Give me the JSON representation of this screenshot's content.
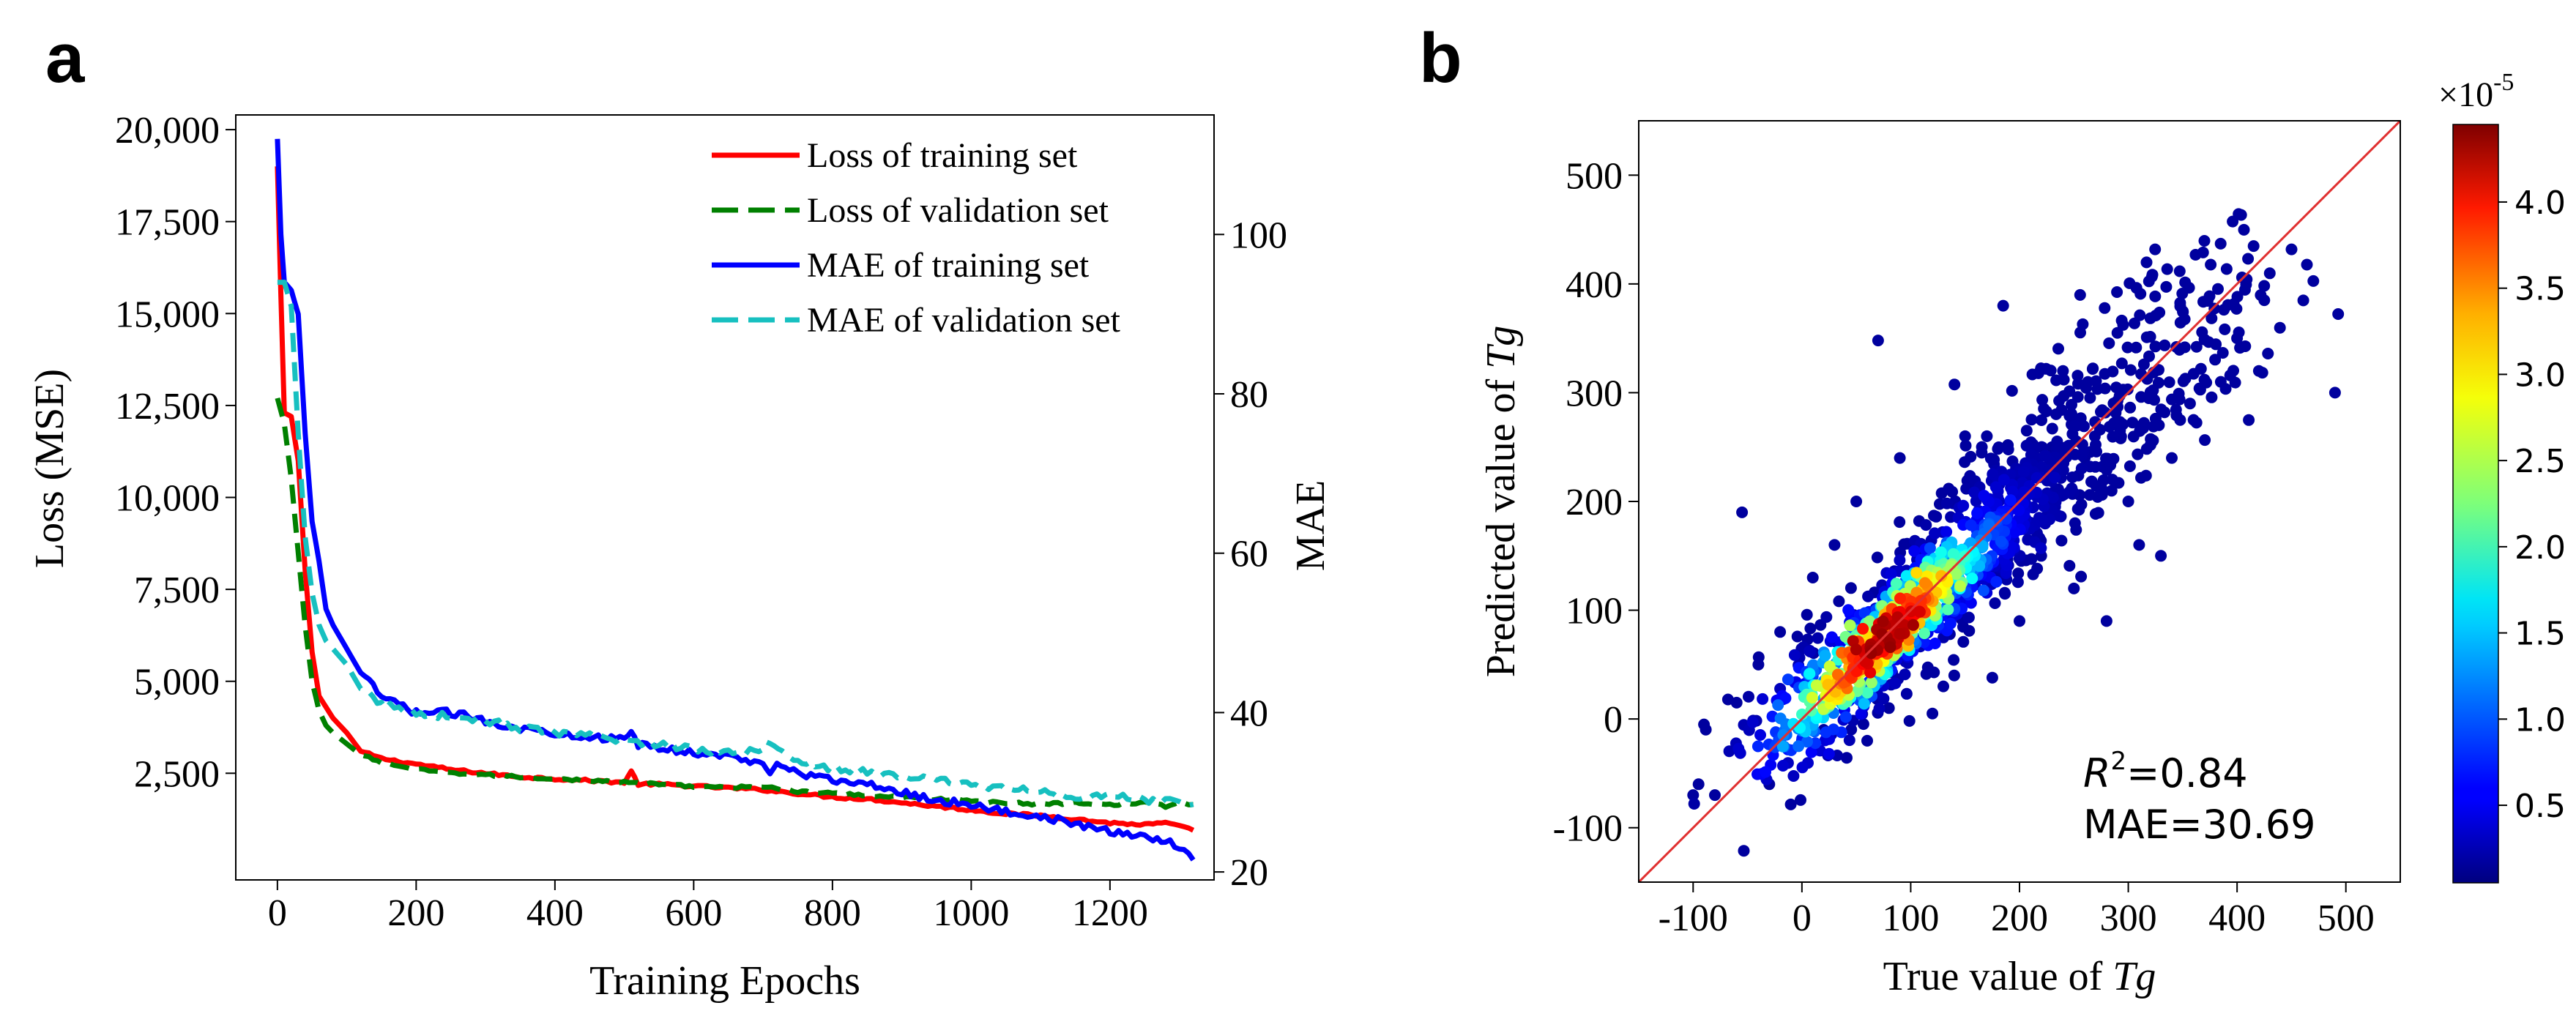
{
  "chart_data": [
    {
      "type": "line",
      "panel_label": "a",
      "title": "",
      "xlabel": "Training Epochs",
      "ylabel": "Loss (MSE)",
      "y2label": "MAE",
      "xlim": [
        -60,
        1350
      ],
      "ylim": [
        -400,
        20400
      ],
      "y2lim": [
        19,
        115
      ],
      "xticks": [
        0,
        200,
        400,
        600,
        800,
        1000,
        1200
      ],
      "xtick_labels": [
        "0",
        "200",
        "400",
        "600",
        "800",
        "1000",
        "1200"
      ],
      "yticks": [
        2500,
        5000,
        7500,
        10000,
        12500,
        15000,
        17500,
        20000
      ],
      "ytick_labels": [
        "2,500",
        "5,000",
        "7,500",
        "10,000",
        "12,500",
        "15,000",
        "17,500",
        "20,000"
      ],
      "y2ticks": [
        20,
        40,
        60,
        80,
        100
      ],
      "y2tick_labels": [
        "20",
        "40",
        "60",
        "80",
        "100"
      ],
      "grid": false,
      "legend_position": "top-right",
      "series": [
        {
          "name": "Loss of training set",
          "axis": "left",
          "color": "#ff0000",
          "dash": "solid",
          "x": [
            0,
            5,
            10,
            20,
            30,
            40,
            50,
            60,
            70,
            80,
            100,
            120,
            150,
            200,
            250,
            300,
            350,
            400,
            450,
            500,
            510,
            520,
            550,
            600,
            650,
            700,
            750,
            800,
            850,
            900,
            950,
            1000,
            1050,
            1100,
            1150,
            1200,
            1250,
            1280,
            1300,
            1320
          ],
          "y": [
            19000,
            15500,
            12300,
            12200,
            11000,
            8000,
            5800,
            4600,
            4300,
            4000,
            3600,
            3100,
            2900,
            2750,
            2600,
            2500,
            2400,
            2350,
            2300,
            2250,
            2550,
            2200,
            2200,
            2150,
            2100,
            2050,
            1950,
            1850,
            1800,
            1700,
            1600,
            1500,
            1400,
            1350,
            1250,
            1150,
            1100,
            1150,
            1050,
            950
          ]
        },
        {
          "name": "Loss of validation set",
          "axis": "left",
          "color": "#008000",
          "dash": "dashed",
          "x": [
            0,
            10,
            20,
            30,
            40,
            50,
            60,
            70,
            80,
            100,
            120,
            150,
            200,
            250,
            300,
            350,
            400,
            450,
            500,
            550,
            600,
            650,
            700,
            750,
            800,
            850,
            900,
            950,
            1000,
            1050,
            1100,
            1150,
            1200,
            1250,
            1280,
            1300,
            1320
          ],
          "y": [
            12700,
            12000,
            10500,
            8500,
            6500,
            5000,
            4200,
            3800,
            3600,
            3300,
            3000,
            2800,
            2600,
            2500,
            2450,
            2400,
            2350,
            2300,
            2250,
            2200,
            2150,
            2100,
            2150,
            2000,
            1950,
            1900,
            1850,
            1800,
            1750,
            1700,
            1650,
            1700,
            1650,
            1700,
            1600,
            1700,
            1650
          ]
        },
        {
          "name": "MAE of training set",
          "axis": "right",
          "color": "#0000ff",
          "dash": "solid",
          "x": [
            0,
            5,
            10,
            20,
            30,
            40,
            50,
            60,
            70,
            80,
            100,
            120,
            150,
            200,
            250,
            300,
            350,
            400,
            450,
            500,
            510,
            520,
            550,
            600,
            650,
            700,
            710,
            720,
            750,
            800,
            850,
            900,
            950,
            1000,
            1050,
            1100,
            1150,
            1200,
            1250,
            1280,
            1300,
            1320
          ],
          "y": [
            112,
            100,
            94,
            93,
            90,
            75,
            64,
            59,
            53,
            51,
            48,
            45,
            42,
            40,
            40,
            39,
            38,
            37.5,
            37,
            36.5,
            37.5,
            36,
            35.5,
            35,
            34.5,
            33.5,
            32.5,
            34,
            32.5,
            31.5,
            31,
            30,
            29,
            28.5,
            27.5,
            27,
            26,
            25,
            24.5,
            24,
            23,
            21.5
          ]
        },
        {
          "name": "MAE of validation set",
          "axis": "right",
          "color": "#17c0c0",
          "dash": "dashed",
          "x": [
            0,
            10,
            20,
            30,
            40,
            50,
            60,
            70,
            80,
            100,
            120,
            150,
            200,
            250,
            300,
            350,
            400,
            450,
            500,
            550,
            600,
            650,
            700,
            710,
            750,
            800,
            850,
            900,
            950,
            1000,
            1050,
            1100,
            1150,
            1200,
            1250,
            1280,
            1300,
            1320
          ],
          "y": [
            94,
            94,
            91,
            75,
            62,
            55,
            51,
            49,
            48,
            46,
            43,
            41,
            40,
            39.5,
            39,
            38,
            37.5,
            37,
            36.5,
            36,
            35.5,
            35,
            35.5,
            36.5,
            34,
            33,
            32.5,
            32,
            31.5,
            31,
            30.5,
            30,
            29.5,
            29.5,
            29,
            29,
            28.5,
            28.5
          ]
        }
      ]
    },
    {
      "type": "scatter",
      "panel_label": "b",
      "title": "",
      "xlabel_prefix": "True value of ",
      "xlabel_var": "Tg",
      "ylabel_prefix": "Predicted value of ",
      "ylabel_var": "Tg",
      "xlim": [
        -150,
        550
      ],
      "ylim": [
        -150,
        550
      ],
      "xticks": [
        -100,
        0,
        100,
        200,
        300,
        400,
        500
      ],
      "xtick_labels": [
        "-100",
        "0",
        "100",
        "200",
        "300",
        "400",
        "500"
      ],
      "yticks": [
        -100,
        0,
        100,
        200,
        300,
        400,
        500
      ],
      "ytick_labels": [
        "-100",
        "0",
        "100",
        "200",
        "300",
        "400",
        "500"
      ],
      "grid": false,
      "reference_line": {
        "from": [
          -150,
          -150
        ],
        "to": [
          550,
          550
        ],
        "color": "#e03030"
      },
      "annotation": {
        "r2_label": "R",
        "r2_exp": "2",
        "r2_value": "=0.84",
        "mae_text": "MAE=30.69"
      },
      "colorbar": {
        "min": 0.05,
        "max": 4.45,
        "ticks": [
          0.5,
          1.0,
          1.5,
          2.0,
          2.5,
          3.0,
          3.5,
          4.0
        ],
        "tick_labels": [
          "0.5",
          "1.0",
          "1.5",
          "2.0",
          "2.5",
          "3.0",
          "3.5",
          "4.0"
        ],
        "multiplier_base": "×10",
        "multiplier_exp": "-5",
        "colormap": "jet"
      },
      "points": {
        "outliers": [
          [
            -55,
            190
          ],
          [
            70,
            348
          ],
          [
            185,
            380
          ],
          [
            490,
            300
          ],
          [
            330,
            150
          ],
          [
            175,
            38
          ],
          [
            -90,
            -5
          ],
          [
            -60,
            15
          ],
          [
            240,
            320
          ],
          [
            290,
            355
          ],
          [
            425,
            385
          ],
          [
            420,
            320
          ],
          [
            385,
            310
          ],
          [
            360,
            275
          ],
          [
            400,
            350
          ],
          [
            10,
            130
          ],
          [
            30,
            160
          ],
          [
            150,
            260
          ],
          [
            230,
            250
          ],
          [
            260,
            240
          ],
          [
            130,
            30
          ],
          [
            200,
            90
          ],
          [
            -30,
            -60
          ],
          [
            -80,
            -70
          ],
          [
            -100,
            -70
          ],
          [
            -95,
            -60
          ],
          [
            0,
            -20
          ],
          [
            20,
            -10
          ],
          [
            80,
            10
          ],
          [
            120,
            5
          ],
          [
            140,
            40
          ],
          [
            250,
            120
          ],
          [
            310,
            160
          ],
          [
            280,
            90
          ],
          [
            170,
            260
          ],
          [
            90,
            240
          ],
          [
            50,
            200
          ],
          [
            -20,
            80
          ],
          [
            -40,
            50
          ],
          [
            60,
            -20
          ],
          [
            220,
            150
          ],
          [
            300,
            200
          ],
          [
            340,
            240
          ]
        ]
      }
    }
  ]
}
